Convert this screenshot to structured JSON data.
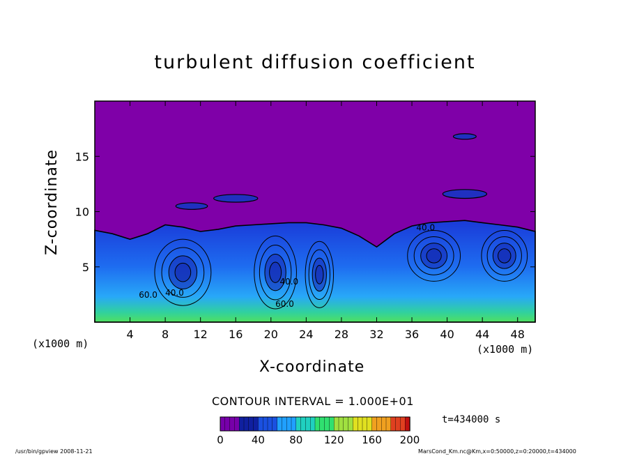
{
  "chart_data": {
    "type": "heatmap",
    "title": "turbulent diffusion coefficient",
    "xlabel": "X-coordinate",
    "ylabel": "Z-coordinate",
    "x_unit": "(x1000 m)",
    "y_unit": "(x1000 m)",
    "xlim": [
      0,
      50
    ],
    "ylim": [
      0,
      20
    ],
    "x_ticks": [
      "4",
      "8",
      "12",
      "16",
      "20",
      "24",
      "28",
      "32",
      "36",
      "40",
      "44",
      "48"
    ],
    "y_ticks": [
      "5",
      "10",
      "15"
    ],
    "contour_interval_text": "CONTOUR INTERVAL = 1.000E+01",
    "colorbar": {
      "range": [
        0,
        200
      ],
      "ticks": [
        "0",
        "40",
        "80",
        "120",
        "160",
        "200"
      ],
      "colors": [
        "#7700aa",
        "#1020a0",
        "#1a50e0",
        "#20a0ff",
        "#20d0c0",
        "#30e070",
        "#a0e040",
        "#e0e020",
        "#f0a020",
        "#e04020",
        "#c01010"
      ]
    },
    "contour_labels": [
      "40.0",
      "60.0",
      "40.0",
      "60.0",
      "40.0"
    ],
    "background_value_color": "#7f00a8",
    "boundary_layer_top_km_by_x": [
      [
        0,
        8.3
      ],
      [
        2,
        8.0
      ],
      [
        4,
        7.5
      ],
      [
        6,
        8.0
      ],
      [
        8,
        8.8
      ],
      [
        10,
        8.6
      ],
      [
        12,
        8.2
      ],
      [
        14,
        8.4
      ],
      [
        16,
        8.7
      ],
      [
        18,
        8.8
      ],
      [
        20,
        8.9
      ],
      [
        22,
        9.0
      ],
      [
        24,
        9.0
      ],
      [
        26,
        8.8
      ],
      [
        28,
        8.5
      ],
      [
        30,
        7.8
      ],
      [
        32,
        6.8
      ],
      [
        34,
        8.0
      ],
      [
        36,
        8.7
      ],
      [
        38,
        9.0
      ],
      [
        40,
        9.1
      ],
      [
        42,
        9.2
      ],
      [
        44,
        9.0
      ],
      [
        46,
        8.8
      ],
      [
        48,
        8.6
      ],
      [
        50,
        8.2
      ]
    ]
  },
  "annotations": {
    "time": "t=434000 s",
    "footer_left": "/usr/bin/gpview   2008-11-21",
    "footer_right": "MarsCond_Km.nc@Km,x=0:50000,z=0:20000,t=434000"
  }
}
